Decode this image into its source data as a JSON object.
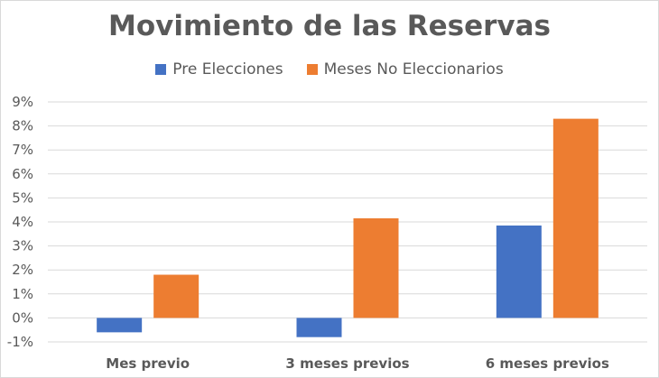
{
  "chart_data": {
    "type": "bar",
    "title": "Movimiento de las Reservas",
    "xlabel": "",
    "ylabel": "",
    "categories": [
      "Mes previo",
      "3 meses previos",
      "6 meses previos"
    ],
    "series": [
      {
        "name": "Pre Elecciones",
        "values": [
          -0.6,
          -0.8,
          3.85
        ],
        "color": "#4472c4"
      },
      {
        "name": "Meses No Eleccionarios",
        "values": [
          1.8,
          4.15,
          8.3
        ],
        "color": "#ed7d31"
      }
    ],
    "ylim": [
      -1,
      9
    ],
    "yticks": [
      "-1%",
      "0%",
      "1%",
      "2%",
      "3%",
      "4%",
      "5%",
      "6%",
      "7%",
      "8%",
      "9%"
    ],
    "grid": true,
    "legend_position": "top"
  }
}
